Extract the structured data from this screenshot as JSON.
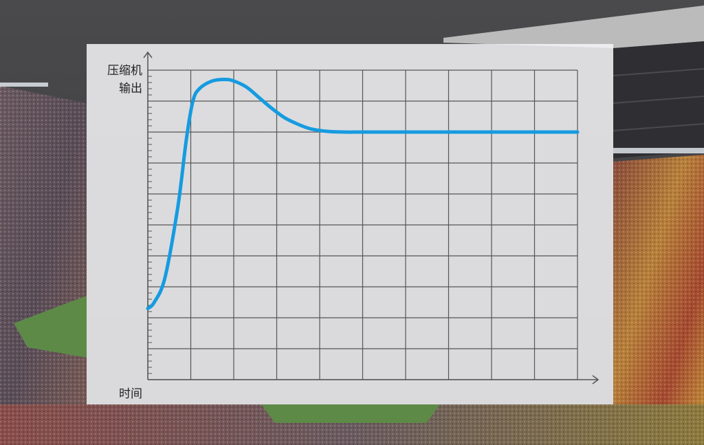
{
  "chart_data": {
    "type": "line",
    "title": "",
    "ylabel": [
      "压缩机",
      "输出"
    ],
    "xlabel": "时间",
    "x_ticks_shown": false,
    "y_ticks_shown": false,
    "grid": true,
    "grid_columns": 10,
    "grid_rows": 10,
    "xlim": [
      0,
      10
    ],
    "ylim": [
      0,
      10
    ],
    "series": [
      {
        "color": "#159be0",
        "x": [
          0,
          0.15,
          0.4,
          0.7,
          0.9,
          1.05,
          1.2,
          1.5,
          1.8,
          2.0,
          2.3,
          2.6,
          2.9,
          3.2,
          3.5,
          3.8,
          4.2,
          4.6,
          5.0,
          6.0,
          7.0,
          8.0,
          9.0,
          10.0
        ],
        "y": [
          2.3,
          2.5,
          3.3,
          5.6,
          7.8,
          9.0,
          9.4,
          9.65,
          9.7,
          9.65,
          9.45,
          9.1,
          8.75,
          8.45,
          8.25,
          8.1,
          8.02,
          8.0,
          8.0,
          8.0,
          8.0,
          8.0,
          8.0,
          8.0
        ]
      }
    ]
  }
}
